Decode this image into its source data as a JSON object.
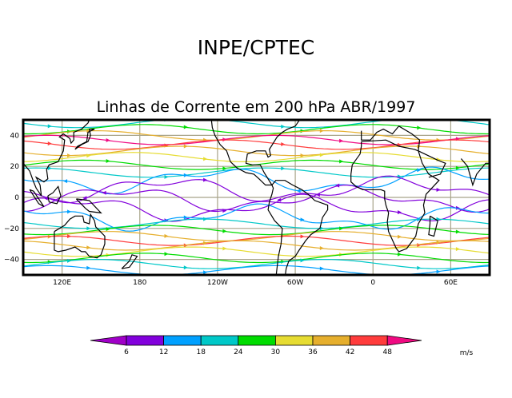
{
  "header": {
    "title": "INPE/CPTEC",
    "subtitle": "Linhas de Corrente em 200 hPa ABR/1997"
  },
  "map": {
    "lat_ticks": [
      {
        "value": 40,
        "label": "40"
      },
      {
        "value": 20,
        "label": "20"
      },
      {
        "value": 0,
        "label": "0"
      },
      {
        "value": -20,
        "label": "−20"
      },
      {
        "value": -40,
        "label": "−40"
      }
    ],
    "lon_ticks": [
      {
        "value": 120,
        "label": "120E"
      },
      {
        "value": 180,
        "label": "180"
      },
      {
        "value": 240,
        "label": "120W"
      },
      {
        "value": 300,
        "label": "60W"
      },
      {
        "value": 360,
        "label": "0"
      },
      {
        "value": 420,
        "label": "60E"
      }
    ],
    "lon_range": [
      90,
      450
    ],
    "lat_range": [
      -50,
      50
    ],
    "grid_color": "#a8a48a"
  },
  "colorbar": {
    "labels": [
      "6",
      "12",
      "18",
      "24",
      "30",
      "36",
      "42",
      "48"
    ],
    "colors": [
      "#a000c8",
      "#8200dc",
      "#00a0ff",
      "#00c8c8",
      "#00dc00",
      "#e6dc32",
      "#e6af2d",
      "#ff3c3c",
      "#f00a82"
    ],
    "units": "m/s"
  },
  "streamlines": [
    {
      "lat": 48,
      "speed_class": 3
    },
    {
      "lat": 44,
      "speed_class": 4
    },
    {
      "lat": 40,
      "speed_class": 6
    },
    {
      "lat": 37,
      "speed_class": 8
    },
    {
      "lat": 34,
      "speed_class": 7
    },
    {
      "lat": 30,
      "speed_class": 6
    },
    {
      "lat": 26,
      "speed_class": 5
    },
    {
      "lat": 21,
      "speed_class": 4
    },
    {
      "lat": 16,
      "speed_class": 3
    },
    {
      "lat": 11,
      "speed_class": 2
    },
    {
      "lat": 5,
      "speed_class": 1
    },
    {
      "lat": -1,
      "speed_class": 1
    },
    {
      "lat": -7,
      "speed_class": 1
    },
    {
      "lat": -13,
      "speed_class": 2
    },
    {
      "lat": -17,
      "speed_class": 3
    },
    {
      "lat": -21,
      "speed_class": 4
    },
    {
      "lat": -25,
      "speed_class": 6
    },
    {
      "lat": -28,
      "speed_class": 7
    },
    {
      "lat": -31,
      "speed_class": 6
    },
    {
      "lat": -35,
      "speed_class": 5
    },
    {
      "lat": -39,
      "speed_class": 4
    },
    {
      "lat": -43,
      "speed_class": 3
    },
    {
      "lat": -47,
      "speed_class": 2
    }
  ]
}
